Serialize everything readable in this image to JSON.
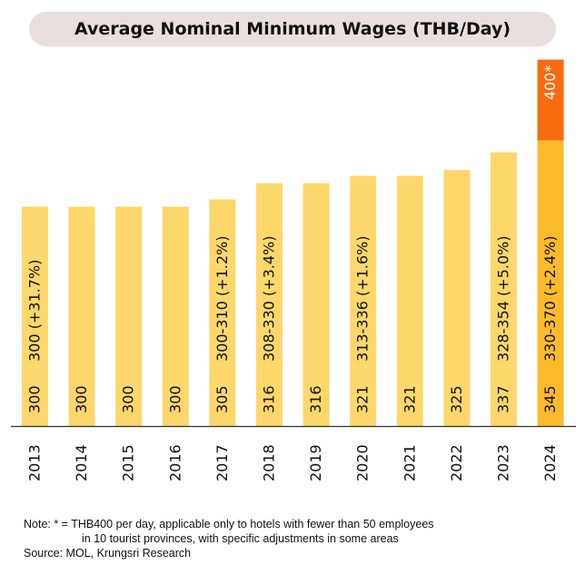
{
  "chart_data": {
    "type": "bar",
    "title": "Average Nominal Minimum Wages (THB/Day)",
    "categories": [
      "2013",
      "2014",
      "2015",
      "2016",
      "2017",
      "2018",
      "2019",
      "2020",
      "2021",
      "2022",
      "2023",
      "2024"
    ],
    "values": [
      300,
      300,
      300,
      300,
      305,
      316,
      316,
      321,
      321,
      325,
      337,
      345
    ],
    "range_labels": [
      "300 (+31.7%)",
      "",
      "",
      "",
      "300-310 (+1.2%)",
      "308-330 (+3.4%)",
      "",
      "313-336 (+1.6%)",
      "",
      "",
      "328-354 (+5.0%)",
      "330-370 (+2.4%)"
    ],
    "extra": {
      "category": "2024",
      "value": 400,
      "label": "400*"
    },
    "xlabel": "",
    "ylabel": "",
    "grid": false,
    "colors": {
      "bar": "#FDD76B",
      "highlight_bar": "#FBBA2A",
      "extra": "#F76B0F",
      "axis": "#333333"
    }
  },
  "notes": {
    "note_line1": "Note: * = THB400 per day, applicable only to hotels with fewer than 50 employees",
    "note_line2": "in 10 tourist provinces, with specific adjustments in some areas",
    "source": "Source: MOL, Krungsri Research"
  }
}
